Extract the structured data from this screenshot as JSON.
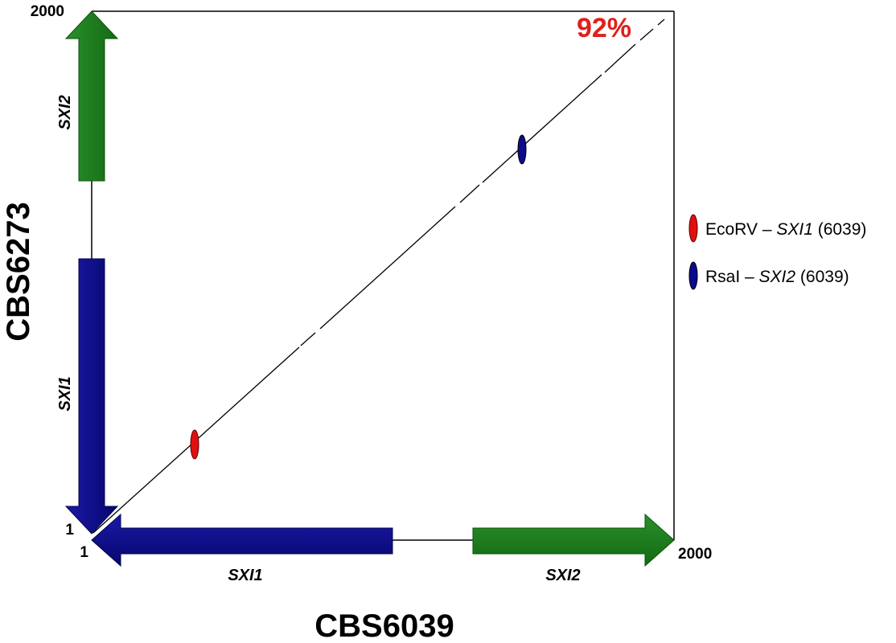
{
  "axes": {
    "x_title": "CBS6039",
    "y_title": "CBS6273",
    "x_min_label": "1",
    "x_max_label": "2000",
    "y_min_label": "1",
    "y_max_label": "2000"
  },
  "identity_label": "92%",
  "x_genes": [
    {
      "name": "SXI1",
      "color": "#0b0b8c"
    },
    {
      "name": "SXI2",
      "color": "#1a7d1a"
    }
  ],
  "y_genes": [
    {
      "name": "SXI1",
      "color": "#0b0b8c"
    },
    {
      "name": "SXI2",
      "color": "#1a7d1a"
    }
  ],
  "markers": [
    {
      "name": "EcoRV",
      "gene": "SXI1",
      "strain": "(6039)",
      "color": "#e01010"
    },
    {
      "name": "RsaI",
      "gene": "SXI2",
      "strain": "(6039)",
      "color": "#0b0b8c"
    }
  ],
  "legend": [
    {
      "enzyme": "EcoRV",
      "dash": " – ",
      "gene": "SXI1",
      "strain": " (6039)",
      "color": "#e01010",
      "icon": "ellipse-marker"
    },
    {
      "enzyme": "RsaI",
      "dash": " – ",
      "gene": "SXI2",
      "strain": " (6039)",
      "color": "#0b0b8c",
      "icon": "ellipse-marker"
    }
  ]
}
